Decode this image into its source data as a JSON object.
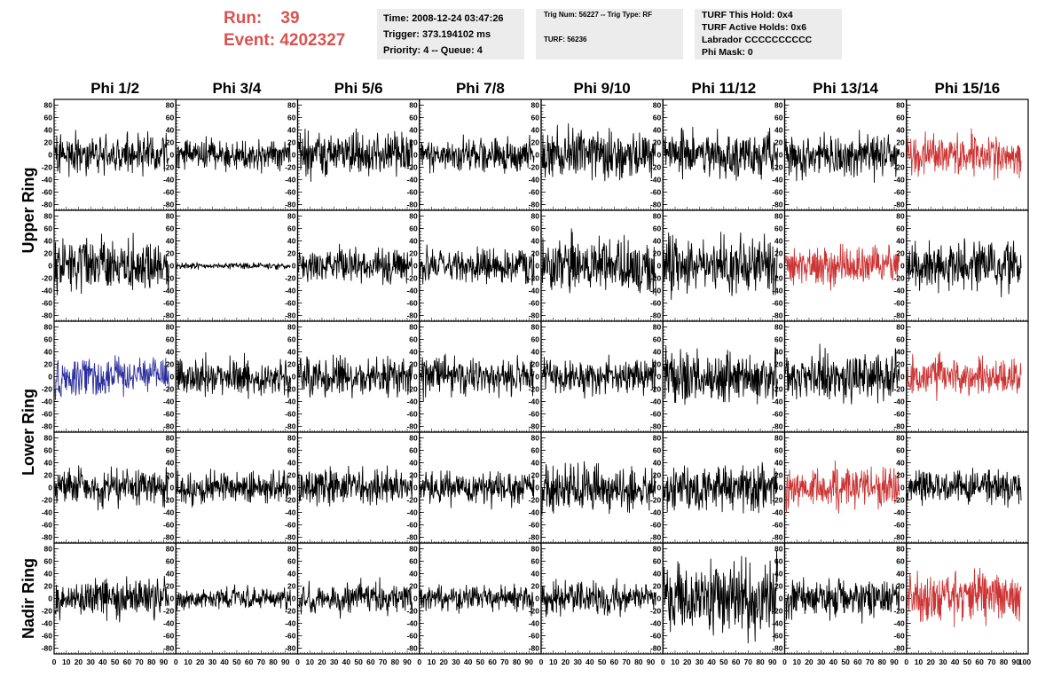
{
  "header": {
    "run_label": "Run:",
    "run_value": "39",
    "event_label": "Event:",
    "event_value": "4202327",
    "time": "Time: 2008-12-24 03:47:26",
    "trigger": "Trigger: 373.194102 ms",
    "priority": "Priority: 4 -- Queue: 4",
    "trig_num": "Trig Num: 56227 -- Trig Type: RF",
    "turf": "TURF: 56236",
    "turf_this_hold": "TURF This Hold: 0x4",
    "turf_active_holds": "TURF Active Holds: 0x6",
    "labrador": "Labrador CCCCCCCCCC",
    "phi_mask": "Phi Mask: 0"
  },
  "chart_data": {
    "type": "line",
    "columns": [
      "Phi 1/2",
      "Phi 3/4",
      "Phi 5/6",
      "Phi 7/8",
      "Phi 9/10",
      "Phi 11/12",
      "Phi 13/14",
      "Phi 15/16"
    ],
    "ring_labels": [
      {
        "text": "Upper Ring",
        "spans_rows": [
          0,
          1
        ]
      },
      {
        "text": "Lower Ring",
        "spans_rows": [
          2,
          3
        ]
      },
      {
        "text": "Nadir Ring",
        "spans_rows": [
          4
        ]
      }
    ],
    "ylim": [
      -85,
      85
    ],
    "yticks": [
      80,
      60,
      40,
      20,
      0,
      -20,
      -40,
      -60,
      -80
    ],
    "xlim": [
      0,
      100
    ],
    "xticks": [
      0,
      10,
      20,
      30,
      40,
      50,
      60,
      70,
      80,
      90
    ],
    "last_xtick": 100,
    "n_samples": 260,
    "colors": {
      "normal": "#000000",
      "highlight": "#cc3333",
      "blue": "#2b2f9c",
      "run_text": "#d9534f"
    },
    "panels": [
      [
        {
          "amp": 13,
          "color": "normal"
        },
        {
          "amp": 10,
          "color": "normal"
        },
        {
          "amp": 13,
          "color": "normal"
        },
        {
          "amp": 10,
          "color": "normal"
        },
        {
          "amp": 16,
          "color": "normal"
        },
        {
          "amp": 15,
          "color": "normal"
        },
        {
          "amp": 14,
          "color": "normal"
        },
        {
          "amp": 13,
          "color": "highlight"
        }
      ],
      [
        {
          "amp": 17,
          "color": "normal"
        },
        {
          "amp": 2,
          "color": "normal"
        },
        {
          "amp": 11,
          "color": "normal"
        },
        {
          "amp": 11,
          "color": "normal"
        },
        {
          "amp": 17,
          "color": "normal"
        },
        {
          "amp": 19,
          "color": "normal"
        },
        {
          "amp": 12,
          "color": "highlight"
        },
        {
          "amp": 15,
          "color": "normal"
        }
      ],
      [
        {
          "amp": 12,
          "color": "blue"
        },
        {
          "amp": 12,
          "color": "normal"
        },
        {
          "amp": 13,
          "color": "normal"
        },
        {
          "amp": 12,
          "color": "normal"
        },
        {
          "amp": 11,
          "color": "normal"
        },
        {
          "amp": 16,
          "color": "normal"
        },
        {
          "amp": 16,
          "color": "normal"
        },
        {
          "amp": 12,
          "color": "highlight"
        }
      ],
      [
        {
          "amp": 12,
          "color": "normal"
        },
        {
          "amp": 10,
          "color": "normal"
        },
        {
          "amp": 12,
          "color": "normal"
        },
        {
          "amp": 10,
          "color": "normal"
        },
        {
          "amp": 15,
          "color": "normal"
        },
        {
          "amp": 15,
          "color": "normal"
        },
        {
          "amp": 13,
          "color": "highlight"
        },
        {
          "amp": 12,
          "color": "normal"
        }
      ],
      [
        {
          "amp": 13,
          "color": "normal"
        },
        {
          "amp": 7,
          "color": "normal"
        },
        {
          "amp": 10,
          "color": "normal"
        },
        {
          "amp": 8,
          "color": "normal"
        },
        {
          "amp": 10,
          "color": "normal"
        },
        {
          "amp": 23,
          "color": "normal"
        },
        {
          "amp": 13,
          "color": "normal"
        },
        {
          "amp": 16,
          "color": "highlight"
        }
      ]
    ]
  }
}
